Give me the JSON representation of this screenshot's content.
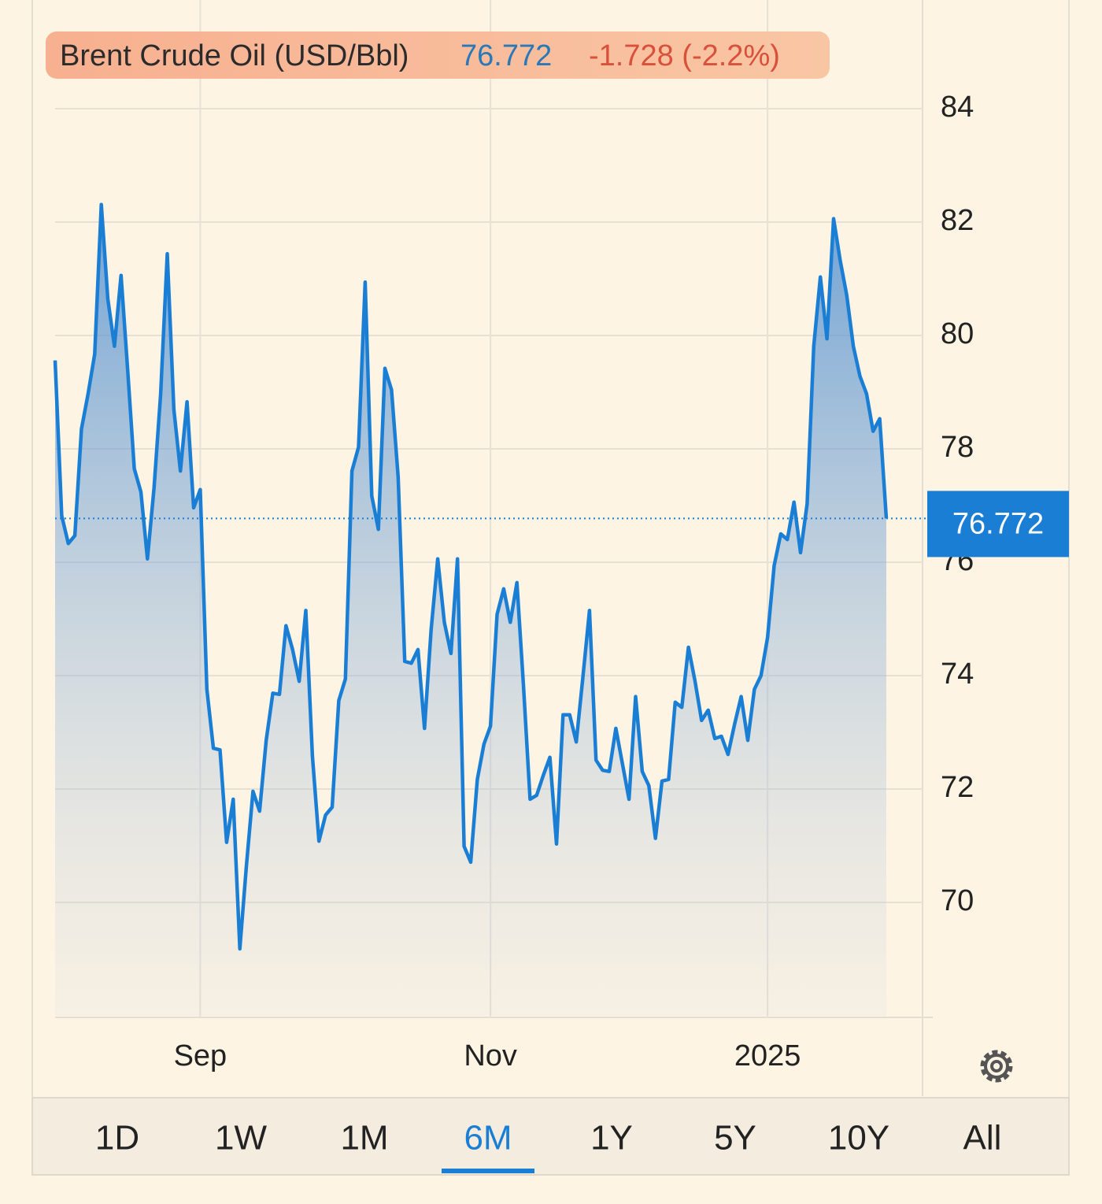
{
  "chart_data": {
    "type": "area",
    "title": "Brent Crude Oil (USD/Bbl)",
    "last_price": "76.772",
    "change": "-1.728 (-2.2%)",
    "color": "#1a7fd4",
    "grid": true,
    "ylim": [
      68,
      86
    ],
    "yticks": [
      70,
      72,
      74,
      76,
      78,
      80,
      82,
      84
    ],
    "categories": [
      null,
      null,
      null,
      null,
      null,
      null,
      null,
      null,
      null,
      null,
      null,
      null,
      null,
      null,
      null,
      null,
      null,
      null,
      null,
      null,
      null,
      null,
      "Sep",
      null,
      null,
      null,
      null,
      null,
      null,
      null,
      null,
      null,
      null,
      null,
      null,
      null,
      null,
      null,
      null,
      null,
      null,
      null,
      null,
      null,
      null,
      null,
      null,
      null,
      null,
      null,
      null,
      null,
      null,
      null,
      null,
      null,
      null,
      null,
      null,
      null,
      null,
      null,
      null,
      null,
      null,
      null,
      "Nov",
      null,
      null,
      null,
      null,
      null,
      null,
      null,
      null,
      null,
      null,
      null,
      null,
      null,
      null,
      null,
      null,
      null,
      null,
      null,
      null,
      null,
      null,
      null,
      null,
      null,
      null,
      null,
      null,
      null,
      null,
      null,
      null,
      null,
      null,
      null,
      null,
      null,
      null,
      null,
      null,
      null,
      "2025",
      null,
      null,
      null,
      null,
      null,
      null,
      null,
      null,
      null,
      null,
      null,
      null,
      null,
      null,
      null,
      null,
      null,
      null
    ],
    "values": [
      79.56,
      76.82,
      76.33,
      76.47,
      78.35,
      78.97,
      79.67,
      82.31,
      80.64,
      79.81,
      81.06,
      79.39,
      77.65,
      77.24,
      76.06,
      77.31,
      78.97,
      81.44,
      78.69,
      77.61,
      78.83,
      76.96,
      77.28,
      73.76,
      72.72,
      72.69,
      71.06,
      71.82,
      69.18,
      70.64,
      71.96,
      71.61,
      72.86,
      73.69,
      73.67,
      74.88,
      74.46,
      73.9,
      75.15,
      72.58,
      71.08,
      71.54,
      71.68,
      73.56,
      73.94,
      77.61,
      78.03,
      80.94,
      77.17,
      76.58,
      79.42,
      79.04,
      77.51,
      74.25,
      74.22,
      74.46,
      73.07,
      74.81,
      76.06,
      74.94,
      74.39,
      76.06,
      70.99,
      70.71,
      72.17,
      72.79,
      73.11,
      75.08,
      75.53,
      74.94,
      75.64,
      73.83,
      71.82,
      71.89,
      72.24,
      72.56,
      71.03,
      73.31,
      73.31,
      72.83,
      73.97,
      75.15,
      72.51,
      72.33,
      72.31,
      73.07,
      72.44,
      71.82,
      73.63,
      72.31,
      72.06,
      71.13,
      72.14,
      72.17,
      73.53,
      73.44,
      74.5,
      73.9,
      73.21,
      73.39,
      72.89,
      72.93,
      72.61,
      73.14,
      73.63,
      72.86,
      73.76,
      74.0,
      74.67,
      75.94,
      76.5,
      76.4,
      77.06,
      76.17,
      77.03,
      79.81,
      81.03,
      79.94,
      82.06,
      81.33,
      80.71,
      79.81,
      79.28,
      78.97,
      78.31,
      78.53,
      76.772
    ],
    "ranges": [
      "1D",
      "1W",
      "1M",
      "6M",
      "1Y",
      "5Y",
      "10Y",
      "All"
    ],
    "selected_range": "6M"
  }
}
